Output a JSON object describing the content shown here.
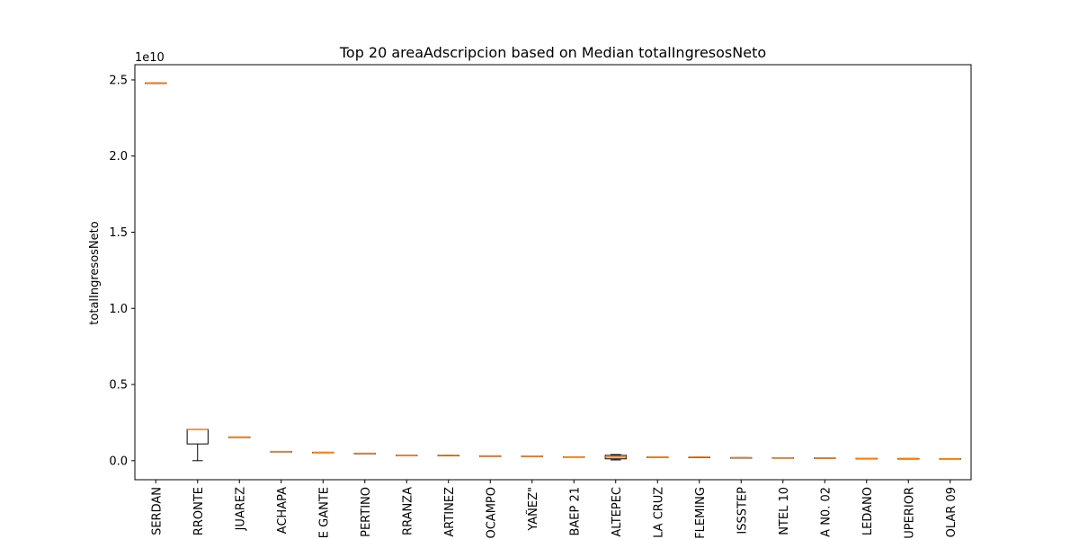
{
  "chart_data": {
    "type": "box",
    "title": "Top 20 areaAdscripcion based on Median totalIngresosNeto",
    "ylabel": "totalIngresosNeto",
    "xlabel": "",
    "y_scale_label": "1e10",
    "ylim": [
      -0.125,
      2.6
    ],
    "yticks": [
      0.0,
      0.5,
      1.0,
      1.5,
      2.0,
      2.5
    ],
    "ytick_labels": [
      "0.0",
      "0.5",
      "1.0",
      "1.5",
      "2.0",
      "2.5"
    ],
    "grid": false,
    "legend": "none",
    "box_color": "#000000",
    "median_color": "#ff7f0e",
    "categories": [
      "SERDAN",
      "RRONTE",
      "JUAREZ",
      "ACHAPA",
      "E GANTE",
      "PERTINO",
      "RRANZA",
      "ARTINEZ",
      "OCAMPO",
      "YAÑEZ\"",
      "BAEP 21",
      "ALTEPEC",
      "LA CRUZ",
      "FLEMING",
      "ISSSTEP",
      "NTEL 10",
      "A N0. 02",
      "LEDANO",
      "UPERIOR",
      "OLAR 09"
    ],
    "boxes": [
      {
        "whislo": 2.48,
        "q1": 2.48,
        "med": 2.48,
        "q3": 2.48,
        "whishi": 2.48
      },
      {
        "whislo": 0.0,
        "q1": 0.11,
        "med": 0.205,
        "q3": 0.205,
        "whishi": 0.205
      },
      {
        "whislo": 0.155,
        "q1": 0.155,
        "med": 0.155,
        "q3": 0.155,
        "whishi": 0.155
      },
      {
        "whislo": 0.06,
        "q1": 0.06,
        "med": 0.06,
        "q3": 0.06,
        "whishi": 0.06
      },
      {
        "whislo": 0.055,
        "q1": 0.055,
        "med": 0.055,
        "q3": 0.055,
        "whishi": 0.055
      },
      {
        "whislo": 0.048,
        "q1": 0.048,
        "med": 0.048,
        "q3": 0.048,
        "whishi": 0.048
      },
      {
        "whislo": 0.036,
        "q1": 0.036,
        "med": 0.036,
        "q3": 0.036,
        "whishi": 0.036
      },
      {
        "whislo": 0.035,
        "q1": 0.035,
        "med": 0.035,
        "q3": 0.035,
        "whishi": 0.035
      },
      {
        "whislo": 0.031,
        "q1": 0.031,
        "med": 0.031,
        "q3": 0.031,
        "whishi": 0.031
      },
      {
        "whislo": 0.03,
        "q1": 0.03,
        "med": 0.03,
        "q3": 0.03,
        "whishi": 0.03
      },
      {
        "whislo": 0.025,
        "q1": 0.025,
        "med": 0.025,
        "q3": 0.025,
        "whishi": 0.025
      },
      {
        "whislo": 0.005,
        "q1": 0.012,
        "med": 0.024,
        "q3": 0.035,
        "whishi": 0.04
      },
      {
        "whislo": 0.024,
        "q1": 0.024,
        "med": 0.024,
        "q3": 0.024,
        "whishi": 0.024
      },
      {
        "whislo": 0.023,
        "q1": 0.023,
        "med": 0.023,
        "q3": 0.023,
        "whishi": 0.023
      },
      {
        "whislo": 0.02,
        "q1": 0.02,
        "med": 0.02,
        "q3": 0.02,
        "whishi": 0.02
      },
      {
        "whislo": 0.019,
        "q1": 0.019,
        "med": 0.019,
        "q3": 0.019,
        "whishi": 0.019
      },
      {
        "whislo": 0.018,
        "q1": 0.018,
        "med": 0.018,
        "q3": 0.018,
        "whishi": 0.018
      },
      {
        "whislo": 0.015,
        "q1": 0.015,
        "med": 0.015,
        "q3": 0.015,
        "whishi": 0.015
      },
      {
        "whislo": 0.014,
        "q1": 0.014,
        "med": 0.014,
        "q3": 0.014,
        "whishi": 0.014
      },
      {
        "whislo": 0.013,
        "q1": 0.013,
        "med": 0.013,
        "q3": 0.013,
        "whishi": 0.013
      }
    ]
  }
}
